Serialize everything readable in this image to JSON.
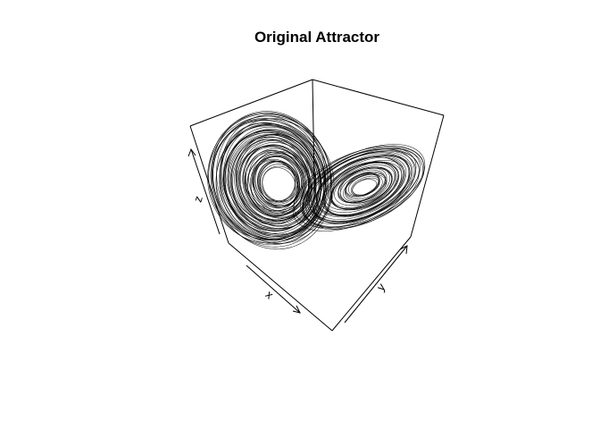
{
  "chart_data": {
    "type": "line",
    "title": "Original Attractor",
    "xlabel": "x",
    "ylabel": "y",
    "zlabel": "z",
    "projection": "3d-perspective",
    "box": true,
    "grid": false,
    "series": [
      {
        "wings": 2
      }
    ]
  }
}
